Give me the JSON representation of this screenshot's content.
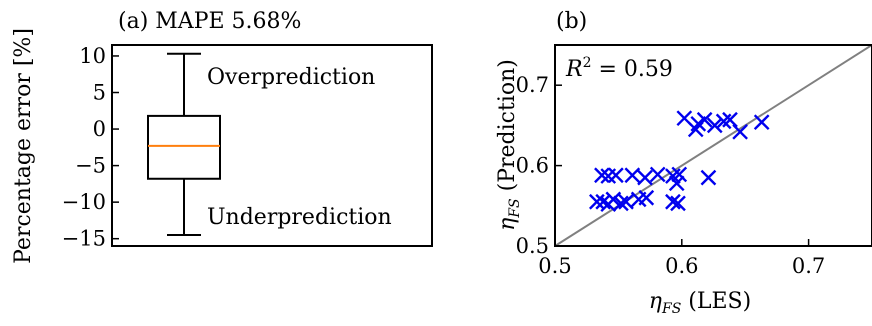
{
  "chart_data": [
    {
      "type": "box",
      "title": "(a) MAPE 5.68%",
      "ylabel": "Percentage error [%]",
      "ylim": [
        -16,
        11.5
      ],
      "yticks": [
        10,
        5,
        0,
        -5,
        -10,
        -15
      ],
      "ytick_labels": [
        "10",
        "5",
        "0",
        "−5",
        "−10",
        "−15"
      ],
      "box": {
        "whisker_high": 10.3,
        "q3": 1.8,
        "median": -2.3,
        "q1": -6.8,
        "whisker_low": -14.5
      },
      "annotations": [
        "Overprediction",
        "Underprediction"
      ],
      "colors": {
        "median": "#ff7f0e",
        "box": "#000000"
      }
    },
    {
      "type": "scatter",
      "title": "(b)",
      "xlabel": "η_FS (LES)",
      "ylabel": "η_FS (Prediction)",
      "xlim": [
        0.5,
        0.75
      ],
      "ylim": [
        0.5,
        0.75
      ],
      "xticks": [
        0.5,
        0.6,
        0.7
      ],
      "xtick_labels": [
        "0.5",
        "0.6",
        "0.7"
      ],
      "yticks": [
        0.5,
        0.6,
        0.7
      ],
      "ytick_labels": [
        "0.5",
        "0.6",
        "0.7"
      ],
      "annotation": "R^2 = 0.59",
      "marker": "x",
      "colors": {
        "points": "#0000ee",
        "reference_line": "#808080"
      },
      "points": [
        [
          0.533,
          0.555
        ],
        [
          0.538,
          0.555
        ],
        [
          0.542,
          0.552
        ],
        [
          0.546,
          0.558
        ],
        [
          0.552,
          0.553
        ],
        [
          0.556,
          0.555
        ],
        [
          0.566,
          0.558
        ],
        [
          0.572,
          0.56
        ],
        [
          0.593,
          0.555
        ],
        [
          0.597,
          0.553
        ],
        [
          0.537,
          0.588
        ],
        [
          0.542,
          0.587
        ],
        [
          0.548,
          0.588
        ],
        [
          0.561,
          0.588
        ],
        [
          0.571,
          0.585
        ],
        [
          0.581,
          0.589
        ],
        [
          0.593,
          0.587
        ],
        [
          0.598,
          0.589
        ],
        [
          0.621,
          0.585
        ],
        [
          0.596,
          0.578
        ],
        [
          0.602,
          0.659
        ],
        [
          0.611,
          0.645
        ],
        [
          0.613,
          0.652
        ],
        [
          0.618,
          0.657
        ],
        [
          0.626,
          0.65
        ],
        [
          0.633,
          0.655
        ],
        [
          0.638,
          0.657
        ],
        [
          0.646,
          0.642
        ],
        [
          0.663,
          0.654
        ]
      ]
    }
  ]
}
